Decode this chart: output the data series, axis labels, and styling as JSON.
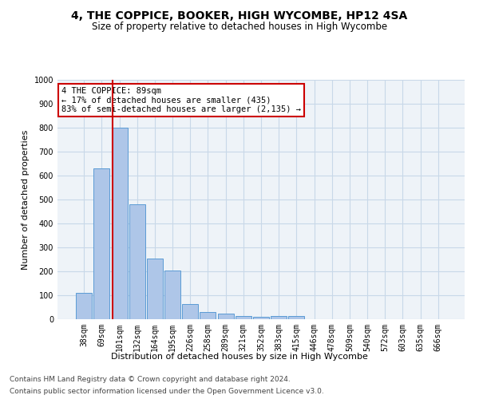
{
  "title1": "4, THE COPPICE, BOOKER, HIGH WYCOMBE, HP12 4SA",
  "title2": "Size of property relative to detached houses in High Wycombe",
  "xlabel": "Distribution of detached houses by size in High Wycombe",
  "ylabel": "Number of detached properties",
  "bar_labels": [
    "38sqm",
    "69sqm",
    "101sqm",
    "132sqm",
    "164sqm",
    "195sqm",
    "226sqm",
    "258sqm",
    "289sqm",
    "321sqm",
    "352sqm",
    "383sqm",
    "415sqm",
    "446sqm",
    "478sqm",
    "509sqm",
    "540sqm",
    "572sqm",
    "603sqm",
    "635sqm",
    "666sqm"
  ],
  "bar_values": [
    110,
    630,
    800,
    480,
    255,
    205,
    62,
    30,
    22,
    15,
    10,
    12,
    12,
    0,
    0,
    0,
    0,
    0,
    0,
    0,
    0
  ],
  "bar_color": "#aec6e8",
  "bar_edge_color": "#5b9bd5",
  "grid_color": "#c8d8e8",
  "bg_color": "#eef3f8",
  "vline_color": "#cc0000",
  "annotation_text": "4 THE COPPICE: 89sqm\n← 17% of detached houses are smaller (435)\n83% of semi-detached houses are larger (2,135) →",
  "annotation_box_color": "#ffffff",
  "annotation_box_edge": "#cc0000",
  "ylim": [
    0,
    1000
  ],
  "yticks": [
    0,
    100,
    200,
    300,
    400,
    500,
    600,
    700,
    800,
    900,
    1000
  ],
  "footer1": "Contains HM Land Registry data © Crown copyright and database right 2024.",
  "footer2": "Contains public sector information licensed under the Open Government Licence v3.0.",
  "title1_fontsize": 10,
  "title2_fontsize": 8.5,
  "xlabel_fontsize": 8,
  "ylabel_fontsize": 8,
  "tick_fontsize": 7,
  "annotation_fontsize": 7.5,
  "footer_fontsize": 6.5
}
